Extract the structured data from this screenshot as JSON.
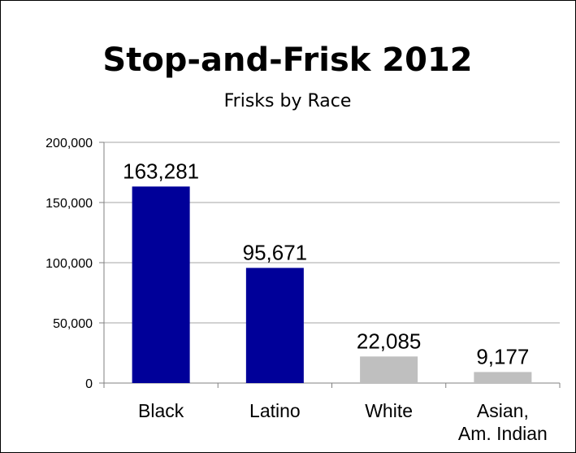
{
  "chart_data": {
    "type": "bar",
    "title": "Stop-and-Frisk 2012",
    "subtitle": "Frisks by Race",
    "categories": [
      [
        "Black"
      ],
      [
        "Latino"
      ],
      [
        "White"
      ],
      [
        "Asian,",
        "Am. Indian"
      ]
    ],
    "values": [
      163281,
      95671,
      22085,
      9177
    ],
    "data_labels": [
      "163,281",
      "95,671",
      "22,085",
      "9,177"
    ],
    "bar_colors": [
      "#000099",
      "#000099",
      "#bfbfbf",
      "#bfbfbf"
    ],
    "ylim": [
      0,
      200000
    ],
    "yticks": [
      0,
      50000,
      100000,
      150000,
      200000
    ],
    "ytick_labels": [
      "0",
      "50,000",
      "100,000",
      "150,000",
      "200,000"
    ],
    "grid": true,
    "grid_color": "#a6a6a6",
    "axis_color": "#808080"
  }
}
